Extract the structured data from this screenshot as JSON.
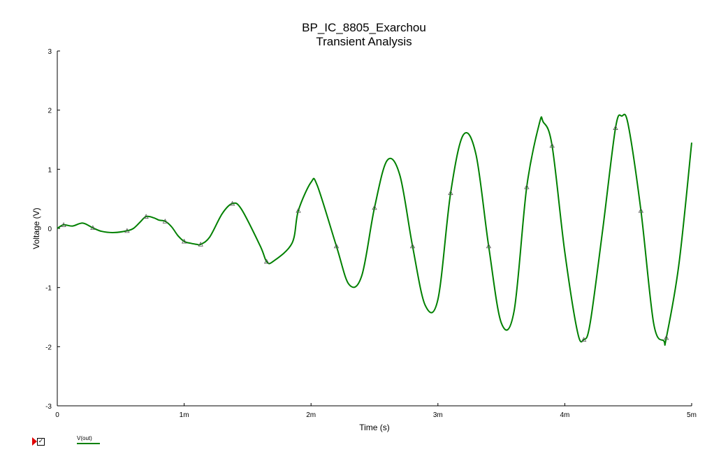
{
  "chart_data": {
    "type": "line",
    "title": "BP_IC_8805_Exarchou",
    "subtitle": "Transient Analysis",
    "xlabel": "Time (s)",
    "ylabel": "Voltage (V)",
    "xlim": [
      0,
      0.005
    ],
    "ylim": [
      -3,
      3
    ],
    "x_ticks": [
      0,
      0.001,
      0.002,
      0.003,
      0.004,
      0.005
    ],
    "x_tick_labels": [
      "0",
      "1m",
      "2m",
      "3m",
      "4m",
      "5m"
    ],
    "y_ticks": [
      -3,
      -2,
      -1,
      0,
      1,
      2,
      3
    ],
    "y_tick_labels": [
      "-3",
      "-2",
      "-1",
      "0",
      "1",
      "2",
      "3"
    ],
    "grid": false,
    "legend_position": "bottom-left",
    "series": [
      {
        "name": "V(out)",
        "color": "#008000",
        "marker": "triangle-icon",
        "x": [
          0,
          5e-05,
          0.00012,
          0.0002,
          0.00028,
          0.00035,
          0.00045,
          0.00055,
          0.0006,
          0.00065,
          0.0007,
          0.00076,
          0.0008,
          0.00085,
          0.0009,
          0.00095,
          0.001,
          0.00105,
          0.0011,
          0.00113,
          0.0012,
          0.0013,
          0.00138,
          0.00145,
          0.0016,
          0.00165,
          0.0017,
          0.00185,
          0.0019,
          0.002,
          0.00205,
          0.0022,
          0.0023,
          0.0024,
          0.0025,
          0.0026,
          0.0027,
          0.0028,
          0.0029,
          0.003,
          0.0031,
          0.0032,
          0.0033,
          0.0034,
          0.0035,
          0.0036,
          0.0037,
          0.0038,
          0.00383,
          0.0039,
          0.004,
          0.0041,
          0.00415,
          0.0042,
          0.0043,
          0.0044,
          0.00445,
          0.0045,
          0.0046,
          0.0047,
          0.00478,
          0.0048,
          0.0049,
          0.005
        ],
        "y": [
          0.0,
          0.06,
          0.04,
          0.09,
          0.01,
          -0.05,
          -0.07,
          -0.04,
          0.0,
          0.1,
          0.2,
          0.18,
          0.14,
          0.12,
          0.03,
          -0.12,
          -0.22,
          -0.25,
          -0.27,
          -0.27,
          -0.15,
          0.25,
          0.42,
          0.33,
          -0.3,
          -0.56,
          -0.56,
          -0.25,
          0.3,
          0.78,
          0.72,
          -0.3,
          -0.95,
          -0.8,
          0.35,
          1.15,
          0.9,
          -0.3,
          -1.3,
          -1.2,
          0.6,
          1.58,
          1.25,
          -0.3,
          -1.6,
          -1.4,
          0.7,
          1.78,
          1.8,
          1.4,
          -0.4,
          -1.75,
          -1.88,
          -1.6,
          0.0,
          1.7,
          1.9,
          1.75,
          0.3,
          -1.6,
          -1.9,
          -1.85,
          -0.6,
          1.45
        ]
      }
    ]
  }
}
